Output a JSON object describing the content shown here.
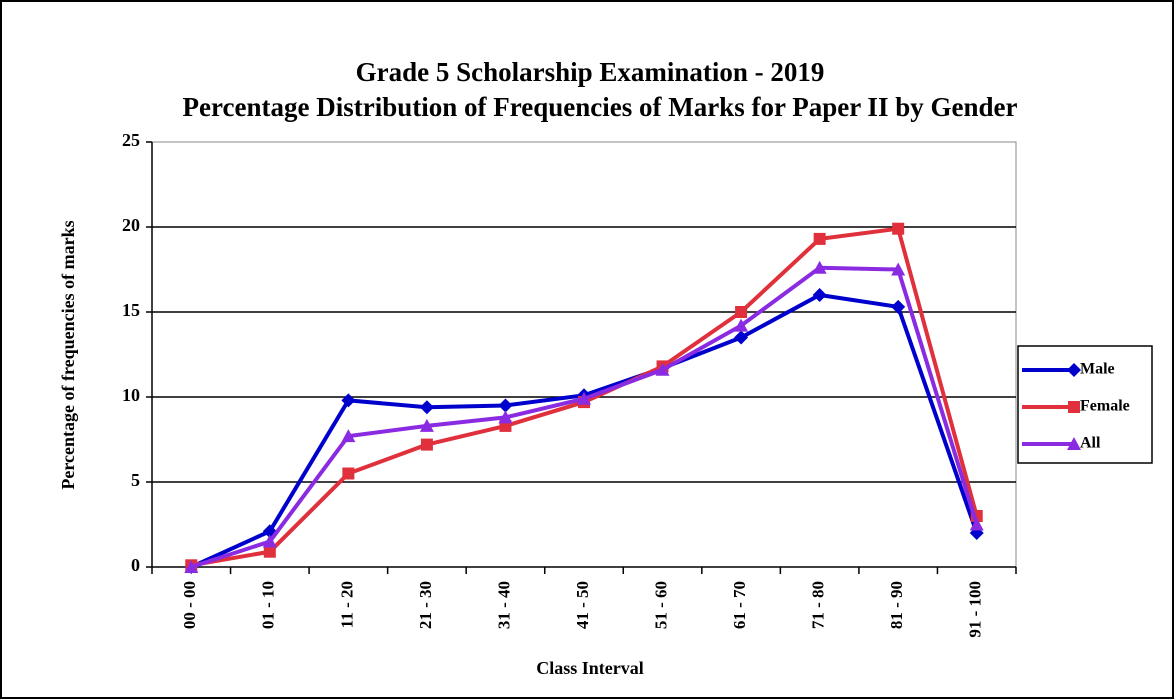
{
  "chart_data": {
    "type": "line",
    "title": "Grade 5 Scholarship Examination - 2019",
    "subtitle": "Percentage Distribution of Frequencies of Marks for Paper II by Gender",
    "x_label": "Class Interval",
    "y_label": "Percentage of frequencies of marks",
    "categories": [
      "00 - 00",
      "01 - 10",
      "11 - 20",
      "21 - 30",
      "31 - 40",
      "41 - 50",
      "51 - 60",
      "61 - 70",
      "71 - 80",
      "81 - 90",
      "91 - 100"
    ],
    "series": [
      {
        "name": "Male",
        "color": "#0000cc",
        "marker": "diamond",
        "values": [
          0,
          2.1,
          9.8,
          9.4,
          9.5,
          10.1,
          11.7,
          13.5,
          16.0,
          15.3,
          2.0
        ]
      },
      {
        "name": "Female",
        "color": "#e0303c",
        "marker": "square",
        "values": [
          0.1,
          0.9,
          5.5,
          7.2,
          8.3,
          9.7,
          11.8,
          15.0,
          19.3,
          19.9,
          3.0
        ]
      },
      {
        "name": "All",
        "color": "#8a2be2",
        "marker": "triangle",
        "values": [
          0,
          1.5,
          7.7,
          8.3,
          8.8,
          9.9,
          11.6,
          14.2,
          17.6,
          17.5,
          2.5
        ]
      }
    ],
    "ylim": [
      0,
      25
    ],
    "yticks": [
      0,
      5,
      10,
      15,
      20,
      25
    ],
    "grid": true,
    "legend": "right"
  }
}
